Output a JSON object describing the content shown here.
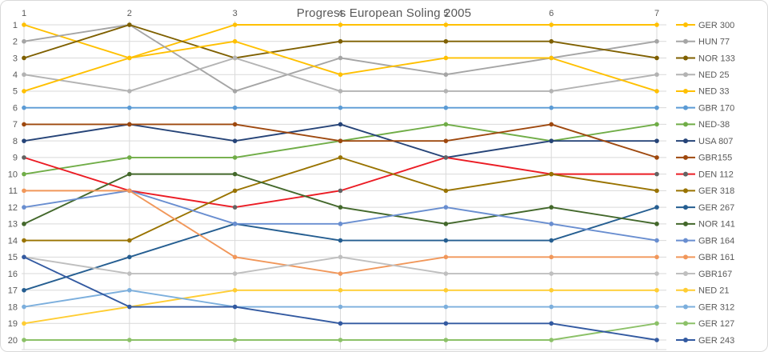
{
  "chart_data": {
    "type": "line",
    "title": "Progress European Soling 2005",
    "subtitle": "",
    "x_categories": [
      "1",
      "2",
      "3",
      "4",
      "5",
      "6",
      "7"
    ],
    "y_axis_ticks": [
      "1",
      "2",
      "3",
      "4",
      "5",
      "6",
      "7",
      "8",
      "9",
      "10",
      "11",
      "12",
      "13",
      "14",
      "15",
      "16",
      "17",
      "18",
      "19",
      "20"
    ],
    "y_axis_meaning": "overall position (1 = best, 20 = worst)",
    "ylim": [
      1,
      20
    ],
    "y_inverted": true,
    "grid": "on",
    "legend_position": "right",
    "grid_color": "#D9D9D9",
    "text_color": "#595959",
    "series": [
      {
        "name": "GER 300",
        "color": "#FFC000",
        "marker_color": "#FFC000",
        "values": [
          1,
          3,
          1,
          1,
          1,
          1,
          1
        ]
      },
      {
        "name": "HUN 77",
        "color": "#A5A5A5",
        "marker_color": "#A5A5A5",
        "values": [
          2,
          1,
          5,
          3,
          4,
          3,
          2
        ]
      },
      {
        "name": "NOR 133",
        "color": "#7F6000",
        "marker_color": "#7F6000",
        "values": [
          3,
          1,
          3,
          2,
          2,
          2,
          3
        ]
      },
      {
        "name": "NED 25",
        "color": "#B3B3B3",
        "marker_color": "#B3B3B3",
        "values": [
          4,
          5,
          3,
          5,
          5,
          5,
          4
        ]
      },
      {
        "name": "NED 33",
        "color": "#FFC000",
        "marker_color": "#FFC000",
        "values": [
          5,
          3,
          2,
          4,
          3,
          3,
          5
        ]
      },
      {
        "name": "GBR 170",
        "color": "#5B9BD5",
        "marker_color": "#5B9BD5",
        "values": [
          6,
          6,
          6,
          6,
          6,
          6,
          6
        ]
      },
      {
        "name": "NED-38",
        "color": "#70AD47",
        "marker_color": "#70AD47",
        "values": [
          10,
          9,
          9,
          8,
          7,
          8,
          7
        ]
      },
      {
        "name": "USA 807",
        "color": "#264478",
        "marker_color": "#264478",
        "values": [
          8,
          7,
          8,
          7,
          9,
          8,
          8
        ]
      },
      {
        "name": "GBR155",
        "color": "#9E480E",
        "marker_color": "#9E480E",
        "values": [
          7,
          7,
          7,
          8,
          8,
          7,
          9
        ]
      },
      {
        "name": "DEN 112",
        "color": "#EB1C24",
        "marker_color": "#636363",
        "values": [
          9,
          11,
          12,
          11,
          9,
          10,
          10
        ]
      },
      {
        "name": "GER 318",
        "color": "#997300",
        "marker_color": "#997300",
        "values": [
          14,
          14,
          11,
          9,
          11,
          10,
          11
        ]
      },
      {
        "name": "GER 267",
        "color": "#255E91",
        "marker_color": "#255E91",
        "values": [
          17,
          15,
          13,
          14,
          14,
          14,
          12
        ]
      },
      {
        "name": "NOR 141",
        "color": "#43682B",
        "marker_color": "#43682B",
        "values": [
          13,
          10,
          10,
          12,
          13,
          12,
          13
        ]
      },
      {
        "name": "GBR 164",
        "color": "#698ED0",
        "marker_color": "#698ED0",
        "values": [
          12,
          11,
          13,
          13,
          12,
          13,
          14
        ]
      },
      {
        "name": "GBR 161",
        "color": "#F1975A",
        "marker_color": "#F1975A",
        "values": [
          11,
          11,
          15,
          16,
          15,
          15,
          15
        ]
      },
      {
        "name": "GBR167",
        "color": "#BFBFBF",
        "marker_color": "#BFBFBF",
        "values": [
          15,
          16,
          16,
          15,
          16,
          16,
          16
        ]
      },
      {
        "name": "NED 21",
        "color": "#FFCD33",
        "marker_color": "#FFCD33",
        "values": [
          19,
          18,
          17,
          17,
          17,
          17,
          17
        ]
      },
      {
        "name": "GER 312",
        "color": "#7CAFDD",
        "marker_color": "#7CAFDD",
        "values": [
          18,
          17,
          18,
          18,
          18,
          18,
          18
        ]
      },
      {
        "name": "GER 127",
        "color": "#8CC168",
        "marker_color": "#8CC168",
        "values": [
          20,
          20,
          20,
          20,
          20,
          20,
          19
        ]
      },
      {
        "name": "GER 243",
        "color": "#335AA1",
        "marker_color": "#335AA1",
        "values": [
          15,
          18,
          18,
          19,
          19,
          19,
          20
        ]
      }
    ]
  }
}
